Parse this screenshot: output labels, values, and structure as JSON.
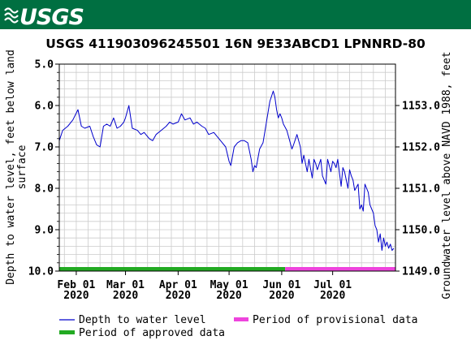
{
  "header": {
    "logo_text": "USGS",
    "band_color": "#006f41"
  },
  "chart_data": {
    "type": "line",
    "title": "USGS 411903096245501 16N  9E33ABCD1 LPNNRD-80",
    "ylabel": "Depth to water level, feet below land surface",
    "ylabel_lines": [
      "Depth to water level, feet below land",
      "surface"
    ],
    "y2label": "Groundwater level above NAVD 1988, feet",
    "ylim": [
      5.0,
      10.0
    ],
    "y_inverted": true,
    "yticks": [
      "5.0",
      "6.0",
      "7.0",
      "8.0",
      "9.0",
      "10.0"
    ],
    "y2ticks": [
      "1153.0",
      "1152.0",
      "1151.0",
      "1150.0",
      "1149.0"
    ],
    "xlim": [
      "2020-01-22",
      "2020-08-07"
    ],
    "xticks": [
      {
        "date": "2020-02-01",
        "label1": "Feb 01",
        "label2": "2020"
      },
      {
        "date": "2020-03-01",
        "label1": "Mar 01",
        "label2": "2020"
      },
      {
        "date": "2020-04-01",
        "label1": "Apr 01",
        "label2": "2020"
      },
      {
        "date": "2020-05-01",
        "label1": "May 01",
        "label2": "2020"
      },
      {
        "date": "2020-06-01",
        "label1": "Jun 01",
        "label2": "2020"
      },
      {
        "date": "2020-07-01",
        "label1": "Jul 01",
        "label2": "2020"
      }
    ],
    "grid": true,
    "series": [
      {
        "name": "Depth to water level",
        "color": "#0000cc",
        "x": [
          "2020-01-22",
          "2020-01-24",
          "2020-01-27",
          "2020-01-30",
          "2020-02-02",
          "2020-02-04",
          "2020-02-06",
          "2020-02-09",
          "2020-02-11",
          "2020-02-13",
          "2020-02-15",
          "2020-02-17",
          "2020-02-19",
          "2020-02-21",
          "2020-02-23",
          "2020-02-25",
          "2020-02-27",
          "2020-02-29",
          "2020-03-01",
          "2020-03-03",
          "2020-03-05",
          "2020-03-08",
          "2020-03-10",
          "2020-03-12",
          "2020-03-15",
          "2020-03-17",
          "2020-03-19",
          "2020-03-22",
          "2020-03-25",
          "2020-03-27",
          "2020-03-29",
          "2020-04-01",
          "2020-04-03",
          "2020-04-05",
          "2020-04-08",
          "2020-04-10",
          "2020-04-12",
          "2020-04-15",
          "2020-04-17",
          "2020-04-19",
          "2020-04-22",
          "2020-04-24",
          "2020-04-26",
          "2020-04-29",
          "2020-05-01",
          "2020-05-02",
          "2020-05-04",
          "2020-05-06",
          "2020-05-08",
          "2020-05-10",
          "2020-05-12",
          "2020-05-14",
          "2020-05-15",
          "2020-05-16",
          "2020-05-17",
          "2020-05-19",
          "2020-05-21",
          "2020-05-23",
          "2020-05-25",
          "2020-05-27",
          "2020-05-28",
          "2020-05-29",
          "2020-05-30",
          "2020-05-31",
          "2020-06-01",
          "2020-06-02",
          "2020-06-04",
          "2020-06-06",
          "2020-06-07",
          "2020-06-08",
          "2020-06-10",
          "2020-06-12",
          "2020-06-13",
          "2020-06-14",
          "2020-06-16",
          "2020-06-17",
          "2020-06-19",
          "2020-06-20",
          "2020-06-21",
          "2020-06-22",
          "2020-06-24",
          "2020-06-25",
          "2020-06-27",
          "2020-06-28",
          "2020-06-30",
          "2020-07-01",
          "2020-07-02",
          "2020-07-03",
          "2020-07-04",
          "2020-07-06",
          "2020-07-07",
          "2020-07-08",
          "2020-07-10",
          "2020-07-11",
          "2020-07-12",
          "2020-07-13",
          "2020-07-14",
          "2020-07-16",
          "2020-07-17",
          "2020-07-18",
          "2020-07-19",
          "2020-07-20",
          "2020-07-22",
          "2020-07-23",
          "2020-07-24",
          "2020-07-25",
          "2020-07-26",
          "2020-07-27",
          "2020-07-28",
          "2020-07-29",
          "2020-07-30",
          "2020-07-31",
          "2020-08-01",
          "2020-08-02",
          "2020-08-03",
          "2020-08-04",
          "2020-08-05",
          "2020-08-06"
        ],
        "y": [
          6.85,
          6.6,
          6.5,
          6.35,
          6.1,
          6.5,
          6.55,
          6.5,
          6.75,
          6.95,
          7.0,
          6.5,
          6.45,
          6.5,
          6.3,
          6.55,
          6.5,
          6.4,
          6.3,
          6.0,
          6.55,
          6.6,
          6.7,
          6.65,
          6.8,
          6.85,
          6.7,
          6.6,
          6.5,
          6.4,
          6.45,
          6.4,
          6.2,
          6.35,
          6.3,
          6.45,
          6.4,
          6.5,
          6.55,
          6.7,
          6.65,
          6.75,
          6.85,
          7.0,
          7.35,
          7.45,
          7.0,
          6.9,
          6.85,
          6.85,
          6.9,
          7.3,
          7.6,
          7.45,
          7.5,
          7.05,
          6.9,
          6.4,
          5.9,
          5.65,
          5.8,
          6.1,
          6.3,
          6.2,
          6.3,
          6.45,
          6.6,
          6.9,
          7.05,
          6.95,
          6.7,
          7.0,
          7.4,
          7.2,
          7.6,
          7.3,
          7.75,
          7.3,
          7.4,
          7.55,
          7.3,
          7.7,
          7.9,
          7.3,
          7.6,
          7.35,
          7.4,
          7.5,
          7.3,
          7.95,
          7.5,
          7.6,
          8.0,
          7.55,
          7.7,
          7.8,
          8.05,
          7.9,
          8.5,
          8.4,
          8.55,
          7.9,
          8.1,
          8.4,
          8.5,
          8.6,
          8.9,
          9.0,
          9.3,
          9.1,
          9.5,
          9.2,
          9.4,
          9.3,
          9.45,
          9.35,
          9.5,
          9.45
        ]
      }
    ],
    "approval_periods": [
      {
        "name": "Period of approved data",
        "start": "2020-01-22",
        "end": "2020-06-03",
        "color": "#22aa22"
      },
      {
        "name": "Period of provisional data",
        "start": "2020-06-03",
        "end": "2020-08-07",
        "color": "#ee44dd"
      }
    ]
  },
  "legend": {
    "items": [
      {
        "label": "Depth to water level",
        "color": "#0000cc",
        "kind": "line"
      },
      {
        "label": "Period of provisional data",
        "color": "#ee44dd",
        "kind": "bar"
      },
      {
        "label": "Period of approved data",
        "color": "#22aa22",
        "kind": "bar"
      }
    ]
  }
}
